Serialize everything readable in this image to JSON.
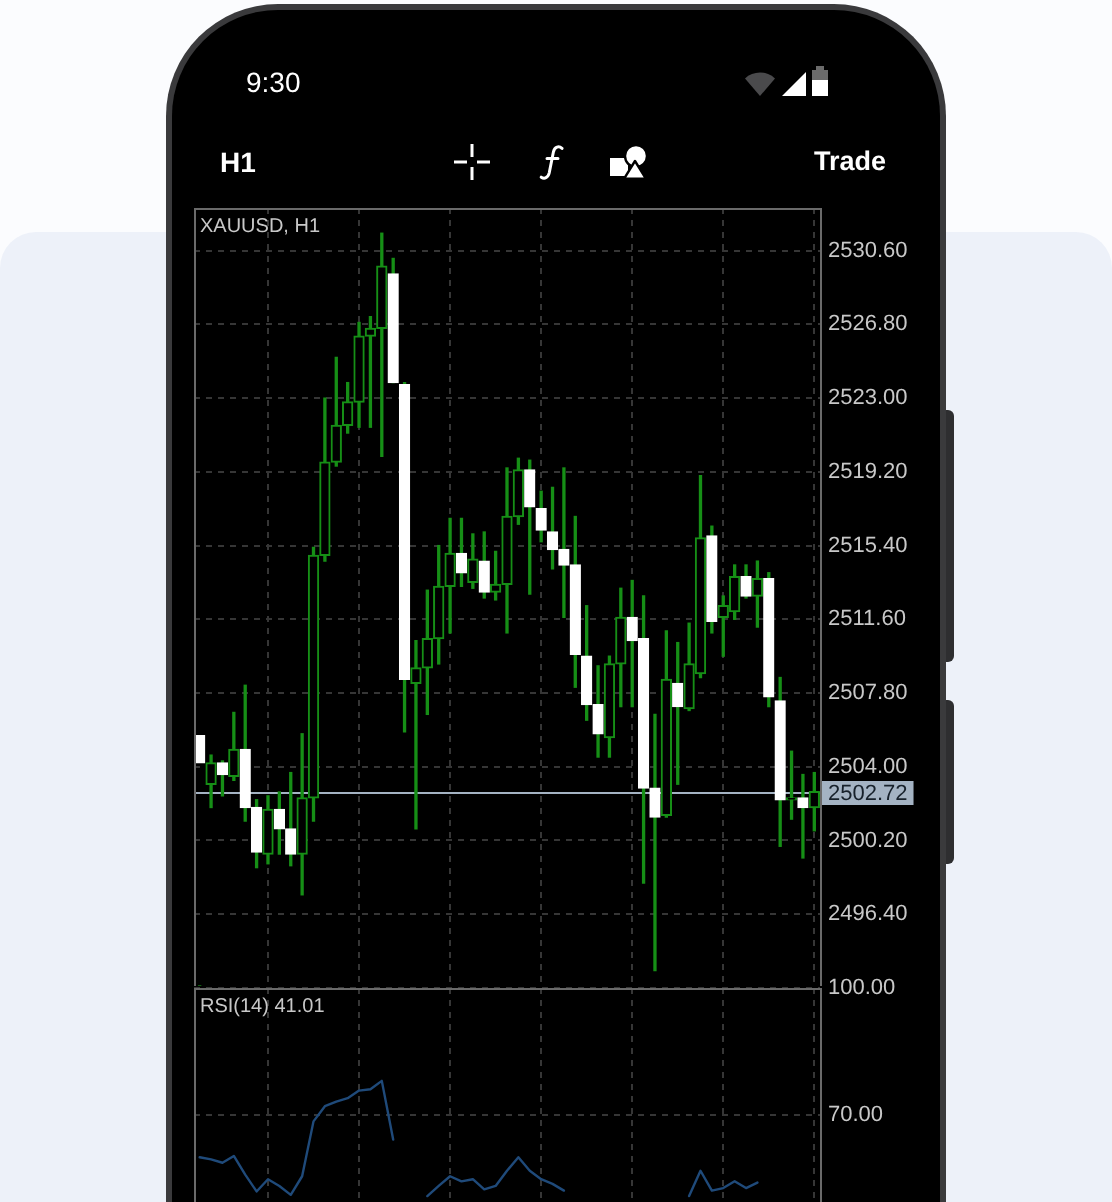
{
  "chart_data": [
    {
      "type": "candlestick",
      "title": "XAUUSD, H1",
      "categories": [
        null,
        null,
        null,
        null,
        null,
        null,
        null,
        null,
        null,
        null,
        null,
        null,
        null,
        null,
        null,
        null,
        null,
        null,
        null,
        null,
        null,
        null,
        null,
        null,
        null,
        null,
        null,
        null,
        null,
        null,
        null,
        null,
        null,
        null,
        null,
        null,
        null,
        null,
        null,
        null,
        null,
        null,
        null,
        null,
        null,
        null,
        null,
        null,
        null,
        null,
        null,
        null,
        null,
        null,
        null
      ],
      "ohlc": [
        [
          2505.6,
          2505.6,
          2504.2,
          2504.2
        ],
        [
          2503.1,
          2504.6,
          2501.9,
          2504.2
        ],
        [
          2504.2,
          2504.3,
          2502.5,
          2503.6
        ],
        [
          2503.5,
          2506.8,
          2503.3,
          2504.9
        ],
        [
          2504.9,
          2508.2,
          2501.2,
          2501.9
        ],
        [
          2501.9,
          2502.3,
          2498.8,
          2499.6
        ],
        [
          2499.5,
          2502.5,
          2499.0,
          2501.8
        ],
        [
          2501.8,
          2502.7,
          2499.5,
          2500.8
        ],
        [
          2500.8,
          2503.7,
          2498.9,
          2499.5
        ],
        [
          2499.5,
          2505.7,
          2497.4,
          2502.4
        ],
        [
          2502.4,
          2515.3,
          2501.2,
          2514.9
        ],
        [
          2514.9,
          2523.0,
          2514.6,
          2519.7
        ],
        [
          2519.7,
          2525.1,
          2519.5,
          2521.6
        ],
        [
          2521.6,
          2523.8,
          2521.2,
          2522.8
        ],
        [
          2522.8,
          2526.9,
          2521.5,
          2526.2
        ],
        [
          2526.2,
          2527.2,
          2521.5,
          2526.6
        ],
        [
          2526.6,
          2531.5,
          2520.0,
          2529.8
        ],
        [
          2529.4,
          2530.2,
          2523.8,
          2523.8
        ],
        [
          2523.7,
          2523.8,
          2505.8,
          2508.5
        ],
        [
          2508.3,
          2510.5,
          2500.8,
          2509.1
        ],
        [
          2509.1,
          2513.1,
          2506.7,
          2510.6
        ],
        [
          2510.6,
          2515.4,
          2509.3,
          2513.3
        ],
        [
          2513.3,
          2516.8,
          2510.9,
          2515.0
        ],
        [
          2515.0,
          2516.8,
          2513.3,
          2514.0
        ],
        [
          2513.5,
          2516.0,
          2513.2,
          2514.7
        ],
        [
          2514.6,
          2516.1,
          2512.7,
          2513.0
        ],
        [
          2513.0,
          2515.1,
          2512.6,
          2513.4
        ],
        [
          2513.4,
          2519.4,
          2510.9,
          2516.9
        ],
        [
          2516.9,
          2519.9,
          2516.5,
          2519.3
        ],
        [
          2519.3,
          2519.8,
          2512.9,
          2517.4
        ],
        [
          2517.3,
          2518.2,
          2515.6,
          2516.2
        ],
        [
          2516.1,
          2518.4,
          2514.2,
          2515.2
        ],
        [
          2515.2,
          2519.4,
          2511.7,
          2514.4
        ],
        [
          2514.4,
          2516.9,
          2508.1,
          2509.8
        ],
        [
          2509.7,
          2512.3,
          2506.4,
          2507.2
        ],
        [
          2507.2,
          2509.2,
          2504.5,
          2505.7
        ],
        [
          2505.5,
          2509.7,
          2504.5,
          2509.3
        ],
        [
          2509.3,
          2513.2,
          2507.1,
          2511.7
        ],
        [
          2511.7,
          2513.6,
          2507.1,
          2510.5
        ],
        [
          2510.6,
          2512.8,
          2498.0,
          2502.9
        ],
        [
          2502.9,
          2506.7,
          2493.5,
          2501.4
        ],
        [
          2501.5,
          2511.0,
          2501.4,
          2508.5
        ],
        [
          2508.3,
          2510.4,
          2503.1,
          2507.1
        ],
        [
          2507.0,
          2511.4,
          2506.9,
          2509.3
        ],
        [
          2508.8,
          2519.0,
          2508.6,
          2515.8
        ],
        [
          2515.9,
          2516.4,
          2510.9,
          2511.5
        ],
        [
          2511.7,
          2512.8,
          2509.7,
          2512.3
        ],
        [
          2512.0,
          2514.4,
          2511.6,
          2513.8
        ],
        [
          2513.8,
          2514.4,
          2512.7,
          2512.8
        ],
        [
          2512.8,
          2514.6,
          2511.2,
          2513.7
        ],
        [
          2513.7,
          2514.0,
          2507.1,
          2507.6
        ],
        [
          2507.4,
          2508.6,
          2499.9,
          2502.3
        ],
        [
          2502.3,
          2504.8,
          2501.3,
          2502.4
        ],
        [
          2502.4,
          2503.6,
          2499.3,
          2501.9
        ],
        [
          2501.9,
          2503.7,
          2500.7,
          2502.72
        ]
      ],
      "color": "#168f16",
      "colors": [
        "#ffffff",
        "#168f16",
        "#ffffff",
        "#168f16",
        "#ffffff",
        "#ffffff",
        "#168f16",
        "#ffffff",
        "#ffffff",
        "#168f16",
        "#168f16",
        "#168f16",
        "#168f16",
        "#168f16",
        "#168f16",
        "#168f16",
        "#168f16",
        "#ffffff",
        "#ffffff",
        "#168f16",
        "#168f16",
        "#168f16",
        "#168f16",
        "#ffffff",
        "#168f16",
        "#ffffff",
        "#168f16",
        "#168f16",
        "#168f16",
        "#ffffff",
        "#ffffff",
        "#ffffff",
        "#ffffff",
        "#ffffff",
        "#ffffff",
        "#ffffff",
        "#168f16",
        "#168f16",
        "#ffffff",
        "#ffffff",
        "#ffffff",
        "#168f16",
        "#ffffff",
        "#168f16",
        "#168f16",
        "#ffffff",
        "#168f16",
        "#168f16",
        "#ffffff",
        "#168f16",
        "#ffffff",
        "#ffffff",
        "#168f16",
        "#ffffff",
        "#168f16"
      ],
      "ylim": [
        2492.7,
        2532.8
      ],
      "yticks": [
        {
          "value": 2530.6,
          "label": "2530.60"
        },
        {
          "value": 2526.8,
          "label": "2526.80"
        },
        {
          "value": 2523.0,
          "label": "2523.00"
        },
        {
          "value": 2519.2,
          "label": "2519.20"
        },
        {
          "value": 2515.4,
          "label": "2515.40"
        },
        {
          "value": 2511.6,
          "label": "2511.60"
        },
        {
          "value": 2507.8,
          "label": "2507.80"
        },
        {
          "value": 2504.0,
          "label": "2504.00"
        },
        {
          "value": 2500.2,
          "label": "2500.20"
        },
        {
          "value": 2496.4,
          "label": "2496.40"
        }
      ],
      "grid": true,
      "tick_labels": "y",
      "ref_lines": [
        {
          "axis": "y",
          "value": 2502.72,
          "label": "2502.72",
          "color": "#a4b3c3"
        }
      ],
      "annotations": [
        "9:30",
        "H1",
        "Trade"
      ]
    },
    {
      "type": "line",
      "title": "RSI(14) 41.01",
      "categories": [
        null,
        null,
        null,
        null,
        null,
        null,
        null,
        null,
        null,
        null,
        null,
        null,
        null,
        null,
        null,
        null,
        null,
        null,
        null,
        null,
        null,
        null,
        null,
        null,
        null,
        null,
        null,
        null,
        null,
        null,
        null,
        null,
        null,
        null,
        null,
        null,
        null,
        null,
        null,
        null,
        null,
        null,
        null,
        null,
        null,
        null,
        null,
        null,
        null,
        null,
        null,
        null,
        null,
        null,
        null
      ],
      "series": [
        {
          "color": "#1f4a7a",
          "values": [
            59.9,
            59.4,
            58.6,
            60.2,
            55.8,
            51.8,
            54.7,
            53.1,
            51.0,
            55.4,
            68.4,
            72.0,
            73.1,
            73.9,
            75.7,
            76.0,
            78.0,
            64.1,
            null,
            null,
            50.7,
            53.1,
            55.4,
            54.2,
            54.7,
            52.3,
            53.1,
            56.7,
            59.9,
            56.7,
            54.7,
            53.6,
            52.0,
            null,
            null,
            null,
            null,
            null,
            null,
            null,
            null,
            null,
            null,
            50.7,
            56.7,
            52.0,
            52.6,
            54.2,
            52.6,
            53.9,
            null,
            null,
            null,
            null,
            null
          ]
        }
      ],
      "ylim": [
        49.3,
        100
      ],
      "yticks": [
        {
          "value": 100,
          "label": "100.00"
        },
        {
          "value": 70,
          "label": "70.00"
        }
      ],
      "grid": true,
      "tick_labels": "y"
    }
  ]
}
